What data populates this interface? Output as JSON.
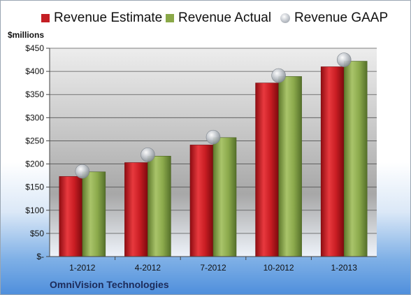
{
  "legend": {
    "estimate": "Revenue Estimate",
    "actual": "Revenue Actual",
    "gaap": "Revenue GAAP"
  },
  "unit_label": "$millions",
  "company": "OmniVision Technologies",
  "colors": {
    "estimate": "#c41e24",
    "actual": "#8aa848",
    "gaap": "#b8bec6"
  },
  "chart_data": {
    "type": "bar",
    "categories": [
      "1-2012",
      "4-2012",
      "7-2012",
      "10-2012",
      "1-2013"
    ],
    "series": [
      {
        "name": "Revenue Estimate",
        "values": [
          173,
          203,
          241,
          375,
          410
        ]
      },
      {
        "name": "Revenue Actual",
        "values": [
          183,
          217,
          257,
          389,
          422
        ]
      },
      {
        "name": "Revenue GAAP",
        "values": [
          184,
          220,
          258,
          391,
          425
        ],
        "marker": "circle"
      }
    ],
    "yticks": [
      "$-",
      "$50",
      "$100",
      "$150",
      "$200",
      "$250",
      "$300",
      "$350",
      "$400",
      "$450"
    ],
    "ylim": [
      0,
      450
    ],
    "ylabel": "$millions",
    "grid": true,
    "legend_position": "top"
  }
}
